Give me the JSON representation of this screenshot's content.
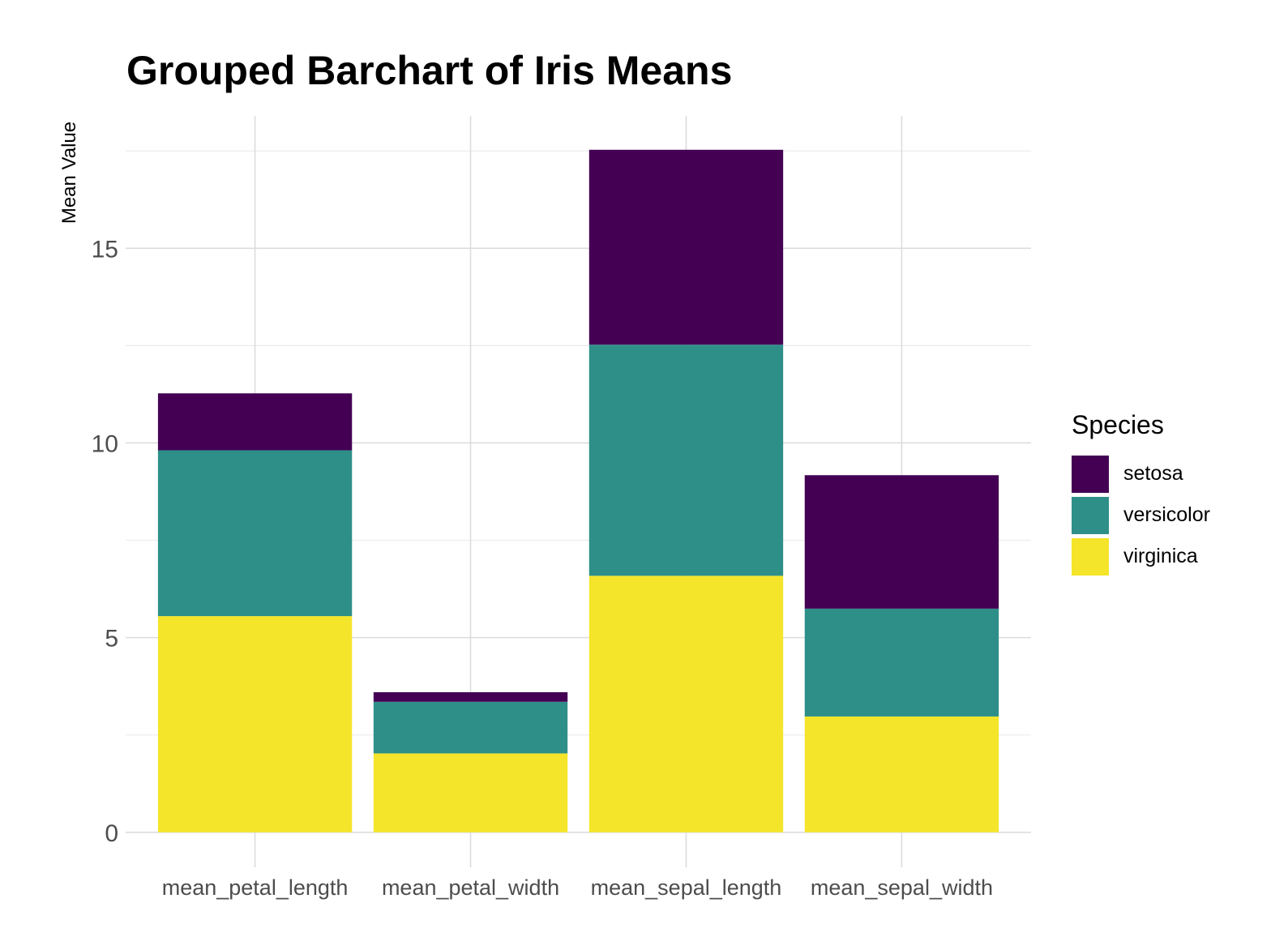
{
  "chart_data": {
    "type": "bar",
    "stacked": true,
    "title": "Grouped Barchart of Iris Means",
    "xlabel": "",
    "ylabel": "Mean Value",
    "categories": [
      "mean_petal_length",
      "mean_petal_width",
      "mean_sepal_length",
      "mean_sepal_width"
    ],
    "series": [
      {
        "name": "virginica",
        "color": "#F5E52A",
        "values": [
          5.552,
          2.026,
          6.588,
          2.974
        ]
      },
      {
        "name": "versicolor",
        "color": "#2E8F89",
        "values": [
          4.26,
          1.326,
          5.936,
          2.77
        ]
      },
      {
        "name": "setosa",
        "color": "#440154",
        "values": [
          1.462,
          0.246,
          5.006,
          3.428
        ]
      }
    ],
    "yticks": [
      "0",
      "5",
      "10",
      "15"
    ],
    "ylim": [
      -0.9,
      18.4
    ],
    "grid": true,
    "legend": {
      "title": "Species",
      "position": "right",
      "order": [
        "setosa",
        "versicolor",
        "virginica"
      ]
    }
  }
}
